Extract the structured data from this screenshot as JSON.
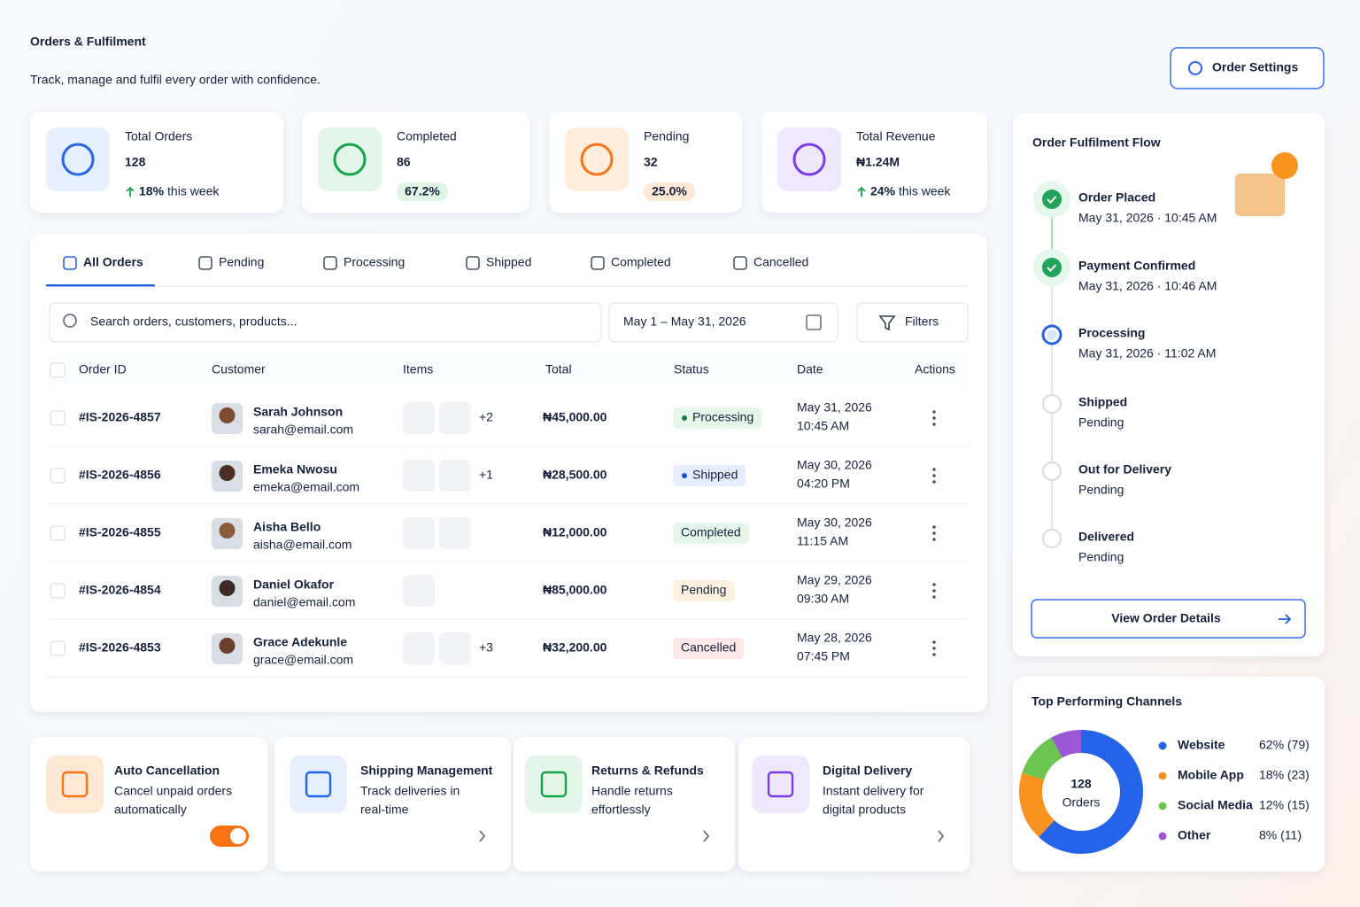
{
  "header": {
    "title": "Orders & Fulfilment",
    "subtitle": "Track, manage and fulfil every order with confidence.",
    "settings_button": "Order Settings"
  },
  "stats": [
    {
      "label": "Total Orders",
      "value": 128,
      "delta": "18%",
      "delta_text": "this week",
      "color": "#2563eb",
      "bg": "#e6efff"
    },
    {
      "label": "Completed",
      "value": 86,
      "badge": "67.2%",
      "color": "#16a34a",
      "bg": "#e4f6ea",
      "badge_bg": "#e1f5e7"
    },
    {
      "label": "Pending",
      "value": 32,
      "badge": "25.0%",
      "color": "#f97316",
      "bg": "#ffeedd",
      "badge_bg": "#fde9d6"
    },
    {
      "label": "Total Revenue",
      "value": "₦1.24M",
      "delta": "24%",
      "delta_text": "this week",
      "color": "#7c3aed",
      "bg": "#efe8fd"
    }
  ],
  "tabs": [
    "All Orders",
    "Pending",
    "Processing",
    "Shipped",
    "Completed",
    "Cancelled"
  ],
  "search_placeholder": "Search orders, customers, products...",
  "date_range": "May 1 – May 31, 2026",
  "filters": "Filters",
  "table": {
    "columns": [
      "Order ID",
      "Customer",
      "Items",
      "Total",
      "Status",
      "Date",
      "Actions"
    ],
    "rows": [
      {
        "id": "#IS-2026-4857",
        "name": "Sarah Johnson",
        "email": "sarah@email.com",
        "more": "+2",
        "total": "₦45,000.00",
        "status": {
          "label": "Processing",
          "color": "#15803d",
          "bg": "#e5f6eb",
          "dot": true
        },
        "date": "May 31, 2026",
        "time": "10:45 AM"
      },
      {
        "id": "#IS-2026-4856",
        "name": "Emeka Nwosu",
        "email": "emeka@email.com",
        "more": "+1",
        "total": "₦28,500.00",
        "status": {
          "label": "Shipped",
          "color": "#1d4ed8",
          "bg": "#e5eeff",
          "dot": true
        },
        "date": "May 30, 2026",
        "time": "04:20 PM"
      },
      {
        "id": "#IS-2026-4855",
        "name": "Aisha Bello",
        "email": "aisha@email.com",
        "total": "₦12,000.00",
        "status": {
          "label": "Completed",
          "color": "#15803d",
          "bg": "#e5f6eb",
          "dot": false
        },
        "date": "May 30, 2026",
        "time": "11:15 AM"
      },
      {
        "id": "#IS-2026-4854",
        "name": "Daniel Okafor",
        "email": "daniel@email.com",
        "total": "₦85,000.00",
        "status": {
          "label": "Pending",
          "color": "#ea7a0c",
          "bg": "#fff1df",
          "dot": false
        },
        "date": "May 29, 2026",
        "time": "09:30 AM"
      },
      {
        "id": "#IS-2026-4853",
        "name": "Grace Adekunle",
        "email": "grace@email.com",
        "more": "+3",
        "total": "₦32,200.00",
        "status": {
          "label": "Cancelled",
          "color": "#dc2626",
          "bg": "#fde8e8",
          "dot": false
        },
        "date": "May 28, 2026",
        "time": "07:45 PM"
      }
    ]
  },
  "features": [
    {
      "title": "Auto Cancellation",
      "text": [
        "Cancel unpaid orders",
        "automatically"
      ],
      "color": "#f97316",
      "bg": "#ffe9d6"
    },
    {
      "title": "Shipping Management",
      "text": [
        "Track deliveries in",
        "real-time"
      ],
      "color": "#2563eb",
      "bg": "#e6efff"
    },
    {
      "title": "Returns & Refunds",
      "text": [
        "Handle returns",
        "effortlessly"
      ],
      "color": "#16a34a",
      "bg": "#e4f6ea"
    },
    {
      "title": "Digital Delivery",
      "text": [
        "Instant delivery for",
        "digital products"
      ],
      "color": "#7c3aed",
      "bg": "#efe8fd"
    }
  ],
  "flow": {
    "title": "Order Fulfilment Flow",
    "steps": [
      {
        "name": "Order Placed",
        "detail": "May 31, 2026 · 10:45 AM",
        "state": "done"
      },
      {
        "name": "Payment Confirmed",
        "detail": "May 31, 2026 · 10:46 AM",
        "state": "done"
      },
      {
        "name": "Processing",
        "detail": "May 31, 2026 · 11:02 AM",
        "state": "current"
      },
      {
        "name": "Shipped",
        "detail": "Pending",
        "state": "pending"
      },
      {
        "name": "Out for Delivery",
        "detail": "Pending",
        "state": "pending"
      },
      {
        "name": "Delivered",
        "detail": "Pending",
        "state": "pending"
      }
    ],
    "button": "View Order Details"
  },
  "channels": {
    "title": "Top Performing Channels",
    "total": 128,
    "total_label": "Orders",
    "items": [
      {
        "name": "Website",
        "color": "#2563eb",
        "percent": 62,
        "label": "62% (79)"
      },
      {
        "name": "Mobile App",
        "color": "#f7931e",
        "percent": 18,
        "label": "18% (23)"
      },
      {
        "name": "Social Media",
        "color": "#6cc551",
        "percent": 12,
        "label": "12% (15)"
      },
      {
        "name": "Other",
        "color": "#9b59d6",
        "percent": 8,
        "label": "8% (11)"
      }
    ]
  }
}
